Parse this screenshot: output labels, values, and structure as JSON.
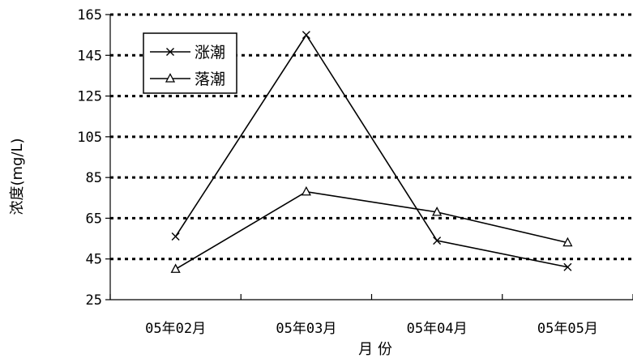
{
  "chart_data": {
    "type": "line",
    "categories": [
      "05年02月",
      "05年03月",
      "05年04月",
      "05年05月"
    ],
    "series": [
      {
        "name": "涨潮",
        "marker": "x",
        "values": [
          56,
          155,
          54,
          41
        ],
        "color": "#000000"
      },
      {
        "name": "落潮",
        "marker": "triangle",
        "values": [
          40,
          78,
          68,
          53
        ],
        "color": "#000000"
      }
    ],
    "xlabel": "月 份",
    "ylabel": "浓度(mg/L)",
    "ylim": [
      25,
      165
    ],
    "yticks": [
      25,
      45,
      65,
      85,
      105,
      125,
      145,
      165
    ],
    "yticks_labels": [
      "25",
      "45",
      "65",
      "85",
      "105",
      "125",
      "145",
      "165"
    ],
    "grid": "dotted-horizontal",
    "legend_position": "top-left"
  }
}
